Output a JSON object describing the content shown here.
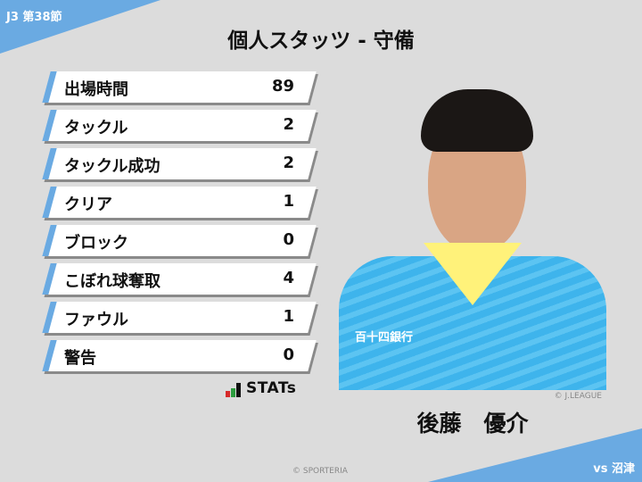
{
  "header": {
    "round": "J3 第38節",
    "title": "個人スタッツ - 守備",
    "opponent": "vs 沼津"
  },
  "stats": [
    {
      "label": "出場時間",
      "value": "89"
    },
    {
      "label": "タックル",
      "value": "2"
    },
    {
      "label": "タックル成功",
      "value": "2"
    },
    {
      "label": "クリア",
      "value": "1"
    },
    {
      "label": "ブロック",
      "value": "0"
    },
    {
      "label": "こぼれ球奪取",
      "value": "4"
    },
    {
      "label": "ファウル",
      "value": "1"
    },
    {
      "label": "警告",
      "value": "0"
    }
  ],
  "brand": {
    "stats_logo": "STATs",
    "copyright": "© SPORTERIA"
  },
  "player": {
    "name": "後藤　優介",
    "photo_credit": "© J.LEAGUE",
    "sponsor": "百十四銀行"
  },
  "colors": {
    "accent": "#6aaae2",
    "background": "#dcdcdc"
  }
}
